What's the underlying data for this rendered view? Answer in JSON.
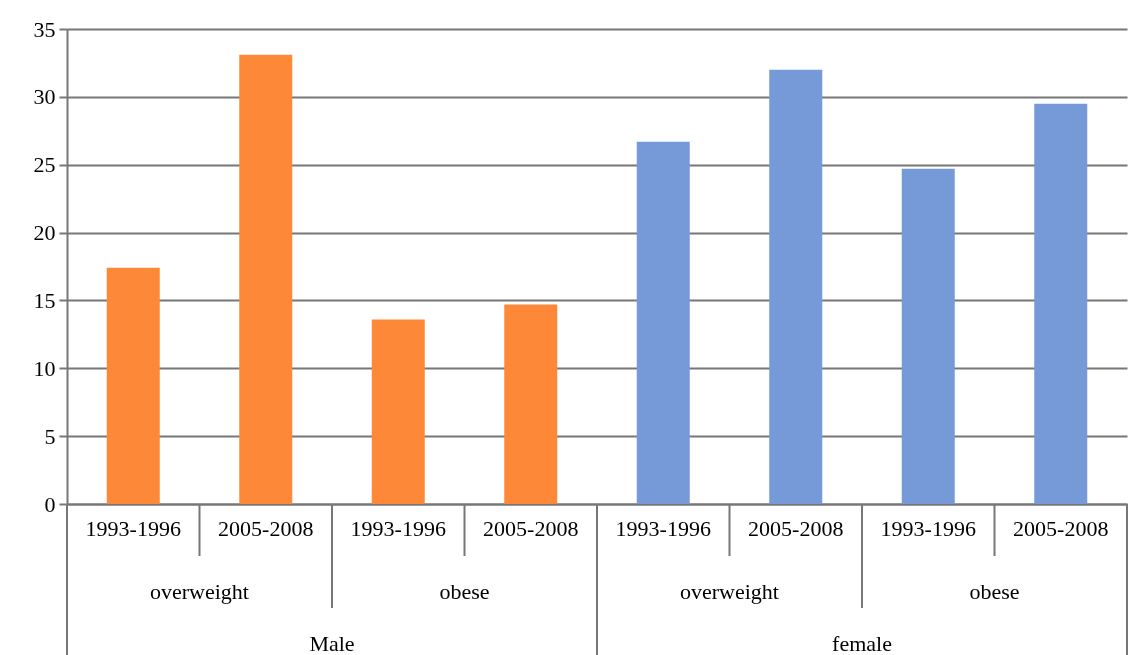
{
  "chart_data": {
    "type": "bar",
    "categories": [
      "1993-1996",
      "2005-2008",
      "1993-1996",
      "2005-2008",
      "1993-1996",
      "2005-2008",
      "1993-1996",
      "2005-2008"
    ],
    "values": [
      17.4,
      33.1,
      13.6,
      14.7,
      26.7,
      32.0,
      24.7,
      29.5
    ],
    "colors": [
      "#fd8838",
      "#fd8838",
      "#fd8838",
      "#fd8838",
      "#7699d8",
      "#7699d8",
      "#7699d8",
      "#7699d8"
    ],
    "annotations": [
      "overweight",
      "obese",
      "overweight",
      "obese",
      "Male",
      "female"
    ],
    "ylim": [
      0,
      35
    ],
    "yticks": [
      0,
      5,
      10,
      15,
      20,
      25,
      30,
      35
    ],
    "grid": "y"
  }
}
